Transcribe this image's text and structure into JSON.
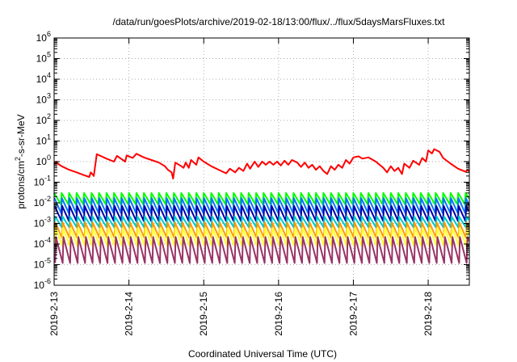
{
  "chart_data": {
    "type": "line",
    "title": "/data/run/goesPlots/archive/2019-02-18/13:00/flux/../flux/5daysMarsFluxes.txt",
    "xlabel": "Coordinated Universal Time (UTC)",
    "ylabel": {
      "prefix": "protons/cm",
      "superscript": "2",
      "suffix": "-s-sr-MeV"
    },
    "xlim": [
      0,
      5.55
    ],
    "x_unit": "days since 2019-2-13 00:00",
    "x_ticks": [
      {
        "x": 0,
        "label": "2019-2-13"
      },
      {
        "x": 1,
        "label": "2019-2-14"
      },
      {
        "x": 2,
        "label": "2019-2-15"
      },
      {
        "x": 3,
        "label": "2019-2-16"
      },
      {
        "x": 4,
        "label": "2019-2-17"
      },
      {
        "x": 5,
        "label": "2019-2-18"
      }
    ],
    "y_scale": "log",
    "ylim_exponent": [
      -6,
      6
    ],
    "y_ticks": [
      {
        "exp": 6,
        "base": "10",
        "sup": "6"
      },
      {
        "exp": 5,
        "base": "10",
        "sup": "5"
      },
      {
        "exp": 4,
        "base": "10",
        "sup": "4"
      },
      {
        "exp": 3,
        "base": "10",
        "sup": "3"
      },
      {
        "exp": 2,
        "base": "10",
        "sup": "2"
      },
      {
        "exp": 1,
        "base": "10",
        "sup": "1"
      },
      {
        "exp": 0,
        "base": "10",
        "sup": "0"
      },
      {
        "exp": -1,
        "base": "10",
        "sup": "-1"
      },
      {
        "exp": -2,
        "base": "10",
        "sup": "-2"
      },
      {
        "exp": -3,
        "base": "10",
        "sup": "-3"
      },
      {
        "exp": -4,
        "base": "10",
        "sup": "-4"
      },
      {
        "exp": -5,
        "base": "10",
        "sup": "-5"
      },
      {
        "exp": -6,
        "base": "10",
        "sup": "-6"
      }
    ],
    "grid": true,
    "series": [
      {
        "color": "#ff0000",
        "points": [
          [
            0.0,
            0.7
          ],
          [
            0.03,
            1.0
          ],
          [
            0.05,
            0.8
          ],
          [
            0.1,
            0.6
          ],
          [
            0.2,
            0.4
          ],
          [
            0.3,
            0.3
          ],
          [
            0.4,
            0.22
          ],
          [
            0.47,
            0.18
          ],
          [
            0.49,
            0.3
          ],
          [
            0.53,
            0.2
          ],
          [
            0.57,
            2.3
          ],
          [
            0.7,
            1.4
          ],
          [
            0.8,
            1.0
          ],
          [
            0.84,
            1.9
          ],
          [
            0.95,
            1.0
          ],
          [
            0.97,
            2.0
          ],
          [
            1.05,
            1.5
          ],
          [
            1.1,
            2.4
          ],
          [
            1.2,
            1.6
          ],
          [
            1.3,
            1.2
          ],
          [
            1.4,
            0.9
          ],
          [
            1.48,
            0.6
          ],
          [
            1.52,
            0.4
          ],
          [
            1.57,
            0.3
          ],
          [
            1.59,
            0.15
          ],
          [
            1.62,
            0.9
          ],
          [
            1.7,
            0.6
          ],
          [
            1.73,
            0.5
          ],
          [
            1.76,
            0.9
          ],
          [
            1.8,
            0.5
          ],
          [
            1.83,
            1.2
          ],
          [
            1.9,
            0.7
          ],
          [
            1.93,
            1.6
          ],
          [
            2.0,
            1.0
          ],
          [
            2.1,
            0.6
          ],
          [
            2.2,
            0.4
          ],
          [
            2.3,
            0.27
          ],
          [
            2.35,
            0.45
          ],
          [
            2.42,
            0.3
          ],
          [
            2.47,
            0.5
          ],
          [
            2.53,
            0.35
          ],
          [
            2.58,
            0.8
          ],
          [
            2.62,
            0.45
          ],
          [
            2.68,
            1.0
          ],
          [
            2.73,
            0.55
          ],
          [
            2.78,
            1.0
          ],
          [
            2.83,
            0.7
          ],
          [
            2.88,
            1.0
          ],
          [
            2.93,
            0.7
          ],
          [
            2.98,
            1.0
          ],
          [
            3.03,
            0.65
          ],
          [
            3.08,
            1.1
          ],
          [
            3.13,
            0.7
          ],
          [
            3.18,
            1.2
          ],
          [
            3.25,
            0.9
          ],
          [
            3.3,
            0.55
          ],
          [
            3.35,
            0.9
          ],
          [
            3.4,
            0.5
          ],
          [
            3.45,
            0.7
          ],
          [
            3.5,
            0.4
          ],
          [
            3.55,
            0.6
          ],
          [
            3.6,
            0.35
          ],
          [
            3.65,
            0.25
          ],
          [
            3.7,
            0.6
          ],
          [
            3.75,
            0.4
          ],
          [
            3.8,
            0.7
          ],
          [
            3.85,
            0.5
          ],
          [
            3.9,
            1.2
          ],
          [
            3.95,
            0.8
          ],
          [
            4.0,
            1.6
          ],
          [
            4.07,
            1.8
          ],
          [
            4.12,
            1.4
          ],
          [
            4.2,
            1.6
          ],
          [
            4.3,
            1.0
          ],
          [
            4.4,
            0.5
          ],
          [
            4.45,
            0.3
          ],
          [
            4.5,
            0.6
          ],
          [
            4.55,
            0.35
          ],
          [
            4.6,
            0.5
          ],
          [
            4.65,
            0.25
          ],
          [
            4.68,
            0.8
          ],
          [
            4.75,
            0.5
          ],
          [
            4.8,
            1.1
          ],
          [
            4.88,
            0.7
          ],
          [
            4.92,
            1.5
          ],
          [
            4.97,
            1.0
          ],
          [
            5.0,
            3.5
          ],
          [
            5.05,
            2.5
          ],
          [
            5.08,
            4.0
          ],
          [
            5.15,
            3.0
          ],
          [
            5.2,
            1.5
          ],
          [
            5.3,
            0.8
          ],
          [
            5.4,
            0.45
          ],
          [
            5.5,
            0.32
          ],
          [
            5.53,
            0.4
          ],
          [
            5.55,
            0.33
          ]
        ]
      },
      {
        "color": "#00ff00",
        "cycle": 0.1,
        "low": 0.0085,
        "high": 0.03,
        "phase": 0.0
      },
      {
        "color": "#0077ff",
        "cycle": 0.1,
        "low": 0.0032,
        "high": 0.017,
        "phase": 0.004
      },
      {
        "color": "#0000aa",
        "cycle": 0.1,
        "low": 0.0013,
        "high": 0.007,
        "phase": 0.008
      },
      {
        "color": "#00c8c8",
        "cycle": 0.1,
        "low": 0.00065,
        "high": 0.0022,
        "phase": 0.012
      },
      {
        "color": "#ff9900",
        "cycle": 0.1,
        "low": 0.0002,
        "high": 0.0011,
        "phase": 0.016
      },
      {
        "color": "#ffff33",
        "cycle": 0.1,
        "low": 8e-05,
        "high": 0.0006,
        "phase": 0.02
      },
      {
        "color": "#993366",
        "cycle": 0.1,
        "low": 1.2e-05,
        "high": 0.00022,
        "phase": 0.024
      }
    ]
  }
}
